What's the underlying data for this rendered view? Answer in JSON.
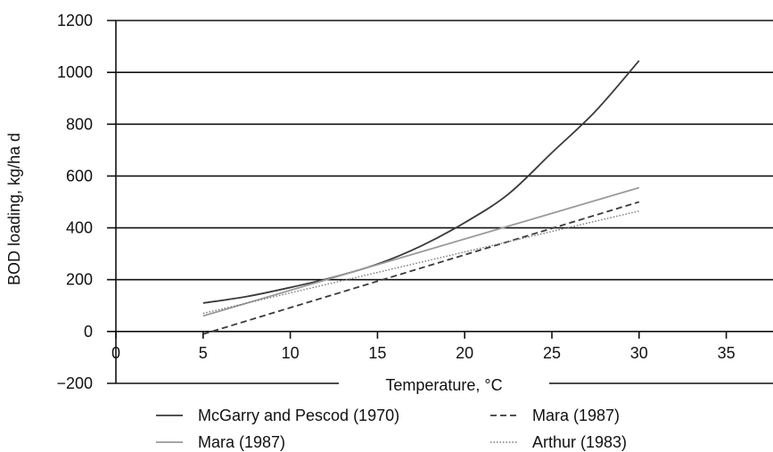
{
  "chart_data": {
    "type": "line",
    "xlabel": "Temperature, °C",
    "ylabel": "BOD loading, kg/ha d",
    "xlim": [
      0,
      40
    ],
    "ylim": [
      -200,
      1200
    ],
    "x_ticks": [
      0,
      5,
      10,
      15,
      20,
      25,
      30,
      35
    ],
    "x_tick_labels": [
      "0",
      "5",
      "10",
      "15",
      "20",
      "25",
      "30",
      "35"
    ],
    "y_ticks": [
      -200,
      0,
      200,
      400,
      600,
      800,
      1000,
      1200
    ],
    "y_tick_labels": [
      "−200",
      "0",
      "200",
      "400",
      "600",
      "800",
      "1000",
      "1200"
    ],
    "grid": "horizontal",
    "legend_position": "bottom",
    "series": [
      {
        "name": "McGarry and Pescod (1970)",
        "color": "#3a3a3a",
        "dash": "solid",
        "x": [
          5,
          7.5,
          10,
          12.5,
          15,
          17.5,
          20,
          22.5,
          25,
          27.5,
          30
        ],
        "y": [
          110,
          135,
          170,
          210,
          260,
          330,
          420,
          530,
          690,
          850,
          1045
        ]
      },
      {
        "name": "Mara (1987)",
        "color": "#3a3a3a",
        "dash": "dashed",
        "x": [
          5,
          30
        ],
        "y": [
          -10,
          500
        ]
      },
      {
        "name": "Mara (1987)",
        "color": "#9a9a9a",
        "dash": "solid",
        "x": [
          5,
          30
        ],
        "y": [
          60,
          555
        ]
      },
      {
        "name": "Arthur (1983)",
        "color": "#777777",
        "dash": "dotted",
        "x": [
          5,
          30
        ],
        "y": [
          70,
          465
        ]
      }
    ],
    "legend_layout": [
      [
        "McGarry and Pescod (1970)",
        "Mara (1987)"
      ],
      [
        "Mara (1987)",
        "Arthur (1983)"
      ]
    ]
  }
}
